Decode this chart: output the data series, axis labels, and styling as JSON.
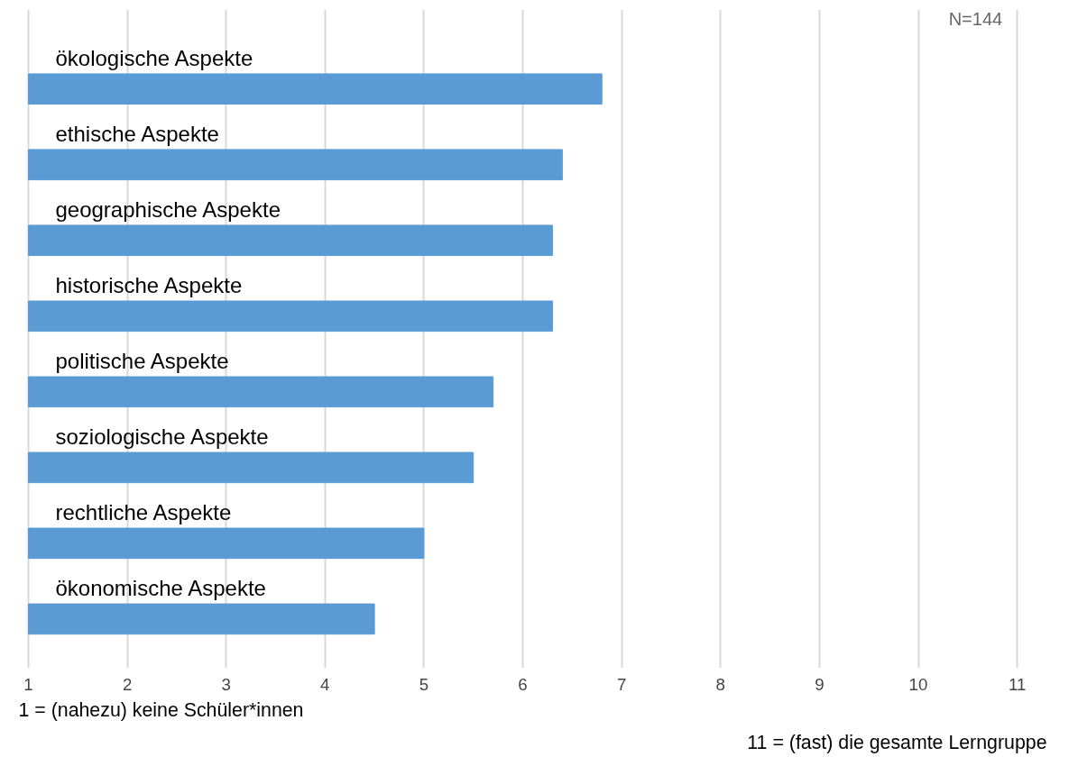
{
  "chart_data": {
    "type": "bar",
    "orientation": "horizontal",
    "categories": [
      "ökologische Aspekte",
      "ethische Aspekte",
      "geographische Aspekte",
      "historische Aspekte",
      "politische Aspekte",
      "soziologische Aspekte",
      "rechtliche Aspekte",
      "ökonomische Aspekte"
    ],
    "values": [
      6.8,
      6.4,
      6.3,
      6.3,
      5.7,
      5.5,
      5.0,
      4.5
    ],
    "color": "#5b9bd5",
    "xlim": [
      1,
      11
    ],
    "xticks": [
      1,
      2,
      3,
      4,
      5,
      6,
      7,
      8,
      9,
      10,
      11
    ],
    "grid": "x",
    "tick_labels": "x",
    "annotations": [
      "N=144",
      "1 = (nahezu) keine Schüler*innen",
      "11 = (fast) die gesamte Lerngruppe"
    ]
  }
}
